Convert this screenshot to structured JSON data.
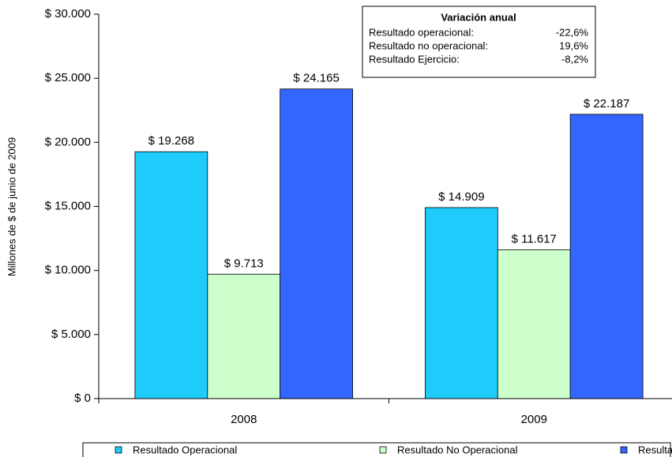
{
  "chart_data": {
    "type": "bar",
    "y_label": "Millones de $ de junio de 2009",
    "categories": [
      "2008",
      "2009"
    ],
    "series": [
      {
        "name": "Resultado Operacional",
        "color": "#1ecbfa",
        "values": [
          19268,
          14909
        ],
        "value_labels": [
          "$ 19.268",
          "$ 14.909"
        ]
      },
      {
        "name": "Resultado No Operacional",
        "color": "#ccffcc",
        "values": [
          9713,
          11617
        ],
        "value_labels": [
          "$ 9.713",
          "$ 11.617"
        ]
      },
      {
        "name": "Resultado Ejercicio",
        "color": "#3366ff",
        "values": [
          24165,
          22187
        ],
        "value_labels": [
          "$ 24.165",
          "$ 22.187"
        ]
      }
    ],
    "ylim": [
      0,
      30000
    ],
    "yticks": [
      {
        "value": 0,
        "label": "$ 0"
      },
      {
        "value": 5000,
        "label": "$ 5.000"
      },
      {
        "value": 10000,
        "label": "$ 10.000"
      },
      {
        "value": 15000,
        "label": "$ 15.000"
      },
      {
        "value": 20000,
        "label": "$ 20.000"
      },
      {
        "value": 25000,
        "label": "$ 25.000"
      },
      {
        "value": 30000,
        "label": "$ 30.000"
      }
    ],
    "grid": false,
    "legend": "bottom",
    "annotation": {
      "title": "Variación anual",
      "rows": [
        {
          "label": "Resultado operacional:",
          "value": "-22,6%"
        },
        {
          "label": "Resultado no operacional:",
          "value": "19,6%"
        },
        {
          "label": "Resultado Ejercicio:",
          "value": "-8,2%"
        }
      ]
    }
  }
}
